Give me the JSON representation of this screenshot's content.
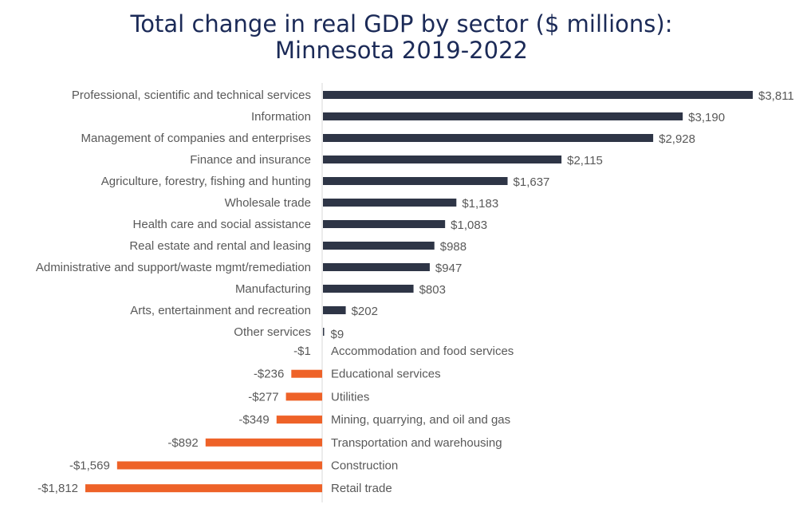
{
  "chart_data": {
    "type": "bar",
    "orientation": "horizontal",
    "title": "Total change in real GDP by sector ($ millions): Minnesota 2019-2022",
    "title_lines": [
      "Total change in real GDP by sector ($ millions):",
      "Minnesota 2019-2022"
    ],
    "xlabel": "",
    "ylabel": "",
    "grid": false,
    "legend": "none",
    "colors": {
      "positive": "#2e3546",
      "negative": "#ee6228",
      "title": "#1b2a57"
    },
    "categories": [
      "Professional, scientific and technical services",
      "Information",
      "Management of companies and enterprises",
      "Finance and insurance",
      "Agriculture, forestry, fishing and hunting",
      "Wholesale trade",
      "Health care and social assistance",
      "Real estate and rental and leasing",
      "Administrative and support/waste mgmt/remediation",
      "Manufacturing",
      "Arts, entertainment and recreation",
      "Other services",
      "Accommodation and food services",
      "Educational services",
      "Utilities",
      "Mining, quarrying, and oil and gas",
      "Transportation and warehousing",
      "Construction",
      "Retail trade"
    ],
    "values": [
      3811,
      3190,
      2928,
      2115,
      1637,
      1183,
      1083,
      988,
      947,
      803,
      202,
      9,
      -1,
      -236,
      -277,
      -349,
      -892,
      -1569,
      -1812
    ],
    "data_labels": [
      "$3,811",
      "$3,190",
      "$2,928",
      "$2,115",
      "$1,637",
      "$1,183",
      "$1,083",
      "$988",
      "$947",
      "$803",
      "$202",
      "$9",
      "-$1",
      "-$236",
      "-$277",
      "-$349",
      "-$892",
      "-$1,569",
      "-$1,812"
    ]
  }
}
